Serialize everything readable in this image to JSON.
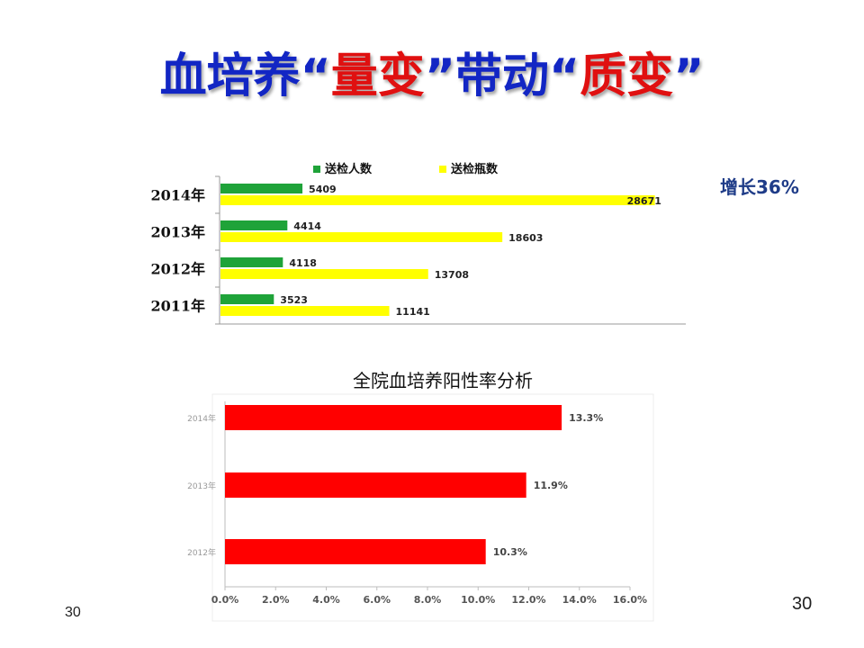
{
  "slide": {
    "title_parts": [
      {
        "text": "血培养",
        "color": "#1226c4"
      },
      {
        "text": "“",
        "color": "#1226c4"
      },
      {
        "text": "量变",
        "color": "#e01010"
      },
      {
        "text": "”",
        "color": "#1226c4"
      },
      {
        "text": "带动",
        "color": "#1226c4"
      },
      {
        "text": " “",
        "color": "#1226c4"
      },
      {
        "text": "质变",
        "color": "#e01010"
      },
      {
        "text": "”",
        "color": "#1226c4"
      }
    ],
    "growth_note": "增长36%",
    "page_number_left": "30",
    "page_number_right": "30"
  },
  "chart_data": [
    {
      "type": "bar",
      "orientation": "horizontal",
      "title": "",
      "legend": [
        {
          "label": "送检人数",
          "color": "#1fa339"
        },
        {
          "label": "送检瓶数",
          "color": "#ffff00"
        }
      ],
      "legend_position": "top",
      "categories": [
        "2014年",
        "2013年",
        "2012年",
        "2011年"
      ],
      "series": [
        {
          "name": "送检人数",
          "values": [
            5409,
            4414,
            4118,
            3523
          ],
          "labels": [
            "5409",
            "4414",
            "4118",
            "3523"
          ],
          "color": "#1fa339"
        },
        {
          "name": "送检瓶数",
          "values": [
            28671,
            18603,
            13708,
            11141
          ],
          "labels": [
            "28671",
            "18603",
            "13708",
            "11141"
          ],
          "color": "#ffff00"
        }
      ],
      "xlim": [
        0,
        30000
      ],
      "grid": false
    },
    {
      "type": "bar",
      "orientation": "horizontal",
      "title": "全院血培养阳性率分析",
      "categories": [
        "2014年",
        "2013年",
        "2012年"
      ],
      "series": [
        {
          "values": [
            13.3,
            11.9,
            10.3
          ],
          "labels": [
            "13.3%",
            "11.9%",
            "10.3%"
          ],
          "color": "#ff0000"
        }
      ],
      "xlim": [
        0,
        16
      ],
      "x_ticks": [
        "0.0%",
        "2.0%",
        "4.0%",
        "6.0%",
        "8.0%",
        "10.0%",
        "12.0%",
        "14.0%",
        "16.0%"
      ],
      "grid": false
    }
  ]
}
